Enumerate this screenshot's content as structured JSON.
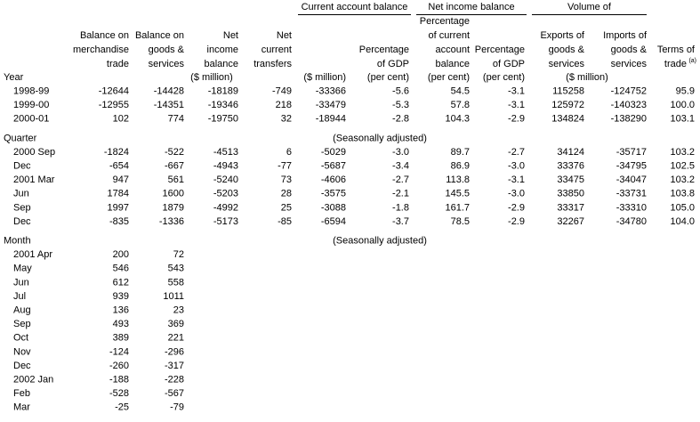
{
  "groups": [
    "Current account balance",
    "Net income balance",
    "Volume of"
  ],
  "columns": [
    [
      "Balance on",
      "merchandise",
      "trade"
    ],
    [
      "Balance on",
      "goods &",
      "services"
    ],
    [
      "Net",
      "income",
      "balance"
    ],
    [
      "Net",
      "current",
      "transfers"
    ],
    [],
    [
      "Percentage",
      "of GDP"
    ],
    [
      "Percentage",
      "of current",
      "account",
      "balance"
    ],
    [
      "Percentage",
      "of GDP"
    ],
    [
      "Exports of",
      "goods &",
      "services"
    ],
    [
      "Imports of",
      "goods &",
      "services"
    ],
    [
      "Terms of",
      "trade"
    ]
  ],
  "column_note_marker": "(a)",
  "units": [
    "($ million)",
    "($ million)",
    "(per cent)",
    "(per cent)",
    "(per cent)",
    "($ million)"
  ],
  "sections": [
    {
      "label": "Year",
      "rows": [
        {
          "label": "1998-99",
          "cells": [
            "-12644",
            "-14428",
            "-18189",
            "-749",
            "-33366",
            "-5.6",
            "54.5",
            "-3.1",
            "115258",
            "-124752",
            "95.9"
          ]
        },
        {
          "label": "1999-00",
          "cells": [
            "-12955",
            "-14351",
            "-19346",
            "218",
            "-33479",
            "-5.3",
            "57.8",
            "-3.1",
            "125972",
            "-140323",
            "100.0"
          ]
        },
        {
          "label": "2000-01",
          "cells": [
            "102",
            "774",
            "-19750",
            "32",
            "-18944",
            "-2.8",
            "104.3",
            "-2.9",
            "134824",
            "-138290",
            "103.1"
          ]
        }
      ]
    },
    {
      "label": "Quarter",
      "note": "(Seasonally adjusted)",
      "rows": [
        {
          "label": "2000 Sep",
          "cells": [
            "-1824",
            "-522",
            "-4513",
            "6",
            "-5029",
            "-3.0",
            "89.7",
            "-2.7",
            "34124",
            "-35717",
            "103.2"
          ]
        },
        {
          "label": "Dec",
          "cells": [
            "-654",
            "-667",
            "-4943",
            "-77",
            "-5687",
            "-3.4",
            "86.9",
            "-3.0",
            "33376",
            "-34795",
            "102.5"
          ]
        },
        {
          "label": "2001 Mar",
          "cells": [
            "947",
            "561",
            "-5240",
            "73",
            "-4606",
            "-2.7",
            "113.8",
            "-3.1",
            "33475",
            "-34047",
            "103.2"
          ]
        },
        {
          "label": "Jun",
          "cells": [
            "1784",
            "1600",
            "-5203",
            "28",
            "-3575",
            "-2.1",
            "145.5",
            "-3.0",
            "33850",
            "-33731",
            "103.8"
          ]
        },
        {
          "label": "Sep",
          "cells": [
            "1997",
            "1879",
            "-4992",
            "25",
            "-3088",
            "-1.8",
            "161.7",
            "-2.9",
            "33317",
            "-33310",
            "105.0"
          ]
        },
        {
          "label": "Dec",
          "cells": [
            "-835",
            "-1336",
            "-5173",
            "-85",
            "-6594",
            "-3.7",
            "78.5",
            "-2.9",
            "32267",
            "-34780",
            "104.0"
          ]
        }
      ]
    },
    {
      "label": "Month",
      "note": "(Seasonally adjusted)",
      "rows": [
        {
          "label": "2001 Apr",
          "cells": [
            "200",
            "72"
          ]
        },
        {
          "label": "May",
          "cells": [
            "546",
            "543"
          ]
        },
        {
          "label": "Jun",
          "cells": [
            "612",
            "558"
          ]
        },
        {
          "label": "Jul",
          "cells": [
            "939",
            "1011"
          ]
        },
        {
          "label": "Aug",
          "cells": [
            "136",
            "23"
          ]
        },
        {
          "label": "Sep",
          "cells": [
            "493",
            "369"
          ]
        },
        {
          "label": "Oct",
          "cells": [
            "389",
            "221"
          ]
        },
        {
          "label": "Nov",
          "cells": [
            "-124",
            "-296"
          ]
        },
        {
          "label": "Dec",
          "cells": [
            "-260",
            "-317"
          ]
        },
        {
          "label": "2002 Jan",
          "cells": [
            "-188",
            "-228"
          ]
        },
        {
          "label": "Feb",
          "cells": [
            "-528",
            "-567"
          ]
        },
        {
          "label": "Mar",
          "cells": [
            "-25",
            "-79"
          ]
        }
      ]
    }
  ]
}
